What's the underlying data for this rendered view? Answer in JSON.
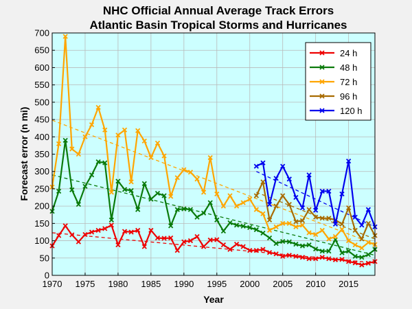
{
  "chart_data": {
    "type": "line",
    "title": [
      "NHC Official Annual Average Track Errors",
      "Atlantic Basin Tropical Storms and Hurricanes"
    ],
    "xlabel": "Year",
    "ylabel": "Forecast error (n mi)",
    "xlim": [
      1970,
      2019
    ],
    "ylim": [
      0,
      700
    ],
    "xticks": [
      1970,
      1975,
      1980,
      1985,
      1990,
      1995,
      2000,
      2005,
      2010,
      2015
    ],
    "yticks": [
      0,
      50,
      100,
      150,
      200,
      250,
      300,
      350,
      400,
      450,
      500,
      550,
      600,
      650,
      700
    ],
    "grid": true,
    "legend_position": "top-right",
    "plot_background": "#ccffff",
    "series": [
      {
        "name": "24 h",
        "color": "#ee0000",
        "start_year": 1970,
        "values": [
          85,
          115,
          143,
          117,
          97,
          118,
          125,
          130,
          135,
          145,
          88,
          127,
          125,
          130,
          83,
          130,
          108,
          107,
          108,
          72,
          97,
          100,
          112,
          83,
          102,
          103,
          88,
          75,
          90,
          83,
          72,
          72,
          75,
          66,
          62,
          55,
          58,
          55,
          52,
          48,
          48,
          52,
          48,
          45,
          46,
          40,
          36,
          30,
          35,
          40
        ],
        "trend": [
          [
            1970,
            123
          ],
          [
            2019,
            36
          ]
        ]
      },
      {
        "name": "48 h",
        "color": "#0a7a0a",
        "start_year": 1970,
        "values": [
          185,
          243,
          390,
          247,
          205,
          257,
          290,
          328,
          325,
          160,
          272,
          248,
          245,
          190,
          265,
          220,
          237,
          230,
          143,
          190,
          192,
          190,
          168,
          180,
          210,
          160,
          128,
          152,
          145,
          142,
          138,
          132,
          122,
          108,
          92,
          98,
          97,
          90,
          85,
          88,
          76,
          70,
          70,
          103,
          65,
          70,
          55,
          52,
          60,
          75
        ],
        "trend": [
          [
            1970,
            290
          ],
          [
            2019,
            58
          ]
        ]
      },
      {
        "name": "72 h",
        "color": "#ffa500",
        "start_year": 1970,
        "values": [
          255,
          380,
          690,
          365,
          350,
          400,
          435,
          485,
          420,
          240,
          405,
          420,
          270,
          418,
          388,
          340,
          382,
          345,
          228,
          282,
          305,
          298,
          278,
          240,
          340,
          235,
          200,
          230,
          200,
          210,
          220,
          190,
          178,
          130,
          140,
          150,
          150,
          140,
          145,
          123,
          118,
          130,
          105,
          112,
          133,
          100,
          88,
          79,
          95,
          89
        ],
        "trend": [
          [
            1970,
            448
          ],
          [
            2019,
            90
          ]
        ]
      },
      {
        "name": "96 h",
        "color": "#a86b00",
        "start_year": 2001,
        "values": [
          230,
          270,
          160,
          200,
          230,
          205,
          155,
          158,
          190,
          168,
          165,
          165,
          160,
          148,
          195,
          130,
          105,
          150,
          115
        ],
        "trend": [
          [
            2001,
            240
          ],
          [
            2019,
            105
          ]
        ]
      },
      {
        "name": "120 h",
        "color": "#0000ee",
        "start_year": 2001,
        "values": [
          315,
          325,
          205,
          280,
          315,
          278,
          225,
          195,
          290,
          188,
          243,
          243,
          148,
          235,
          330,
          168,
          145,
          190,
          140
        ],
        "trend": [
          [
            2001,
            300
          ],
          [
            2019,
            140
          ]
        ]
      }
    ]
  }
}
